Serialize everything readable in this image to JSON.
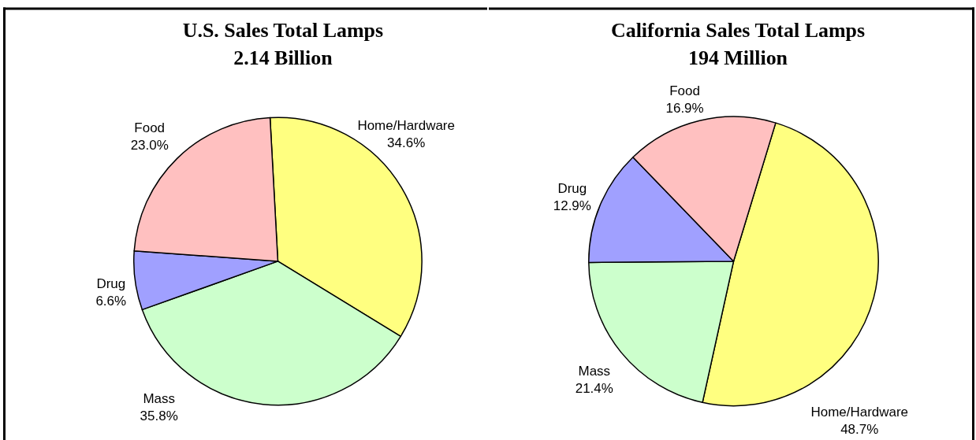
{
  "chart_data": [
    {
      "type": "pie",
      "title": "U.S. Sales Total Lamps",
      "subtitle": "2.14 Billion",
      "categories": [
        "Home/Hardware",
        "Mass",
        "Drug",
        "Food"
      ],
      "values": [
        34.6,
        35.8,
        6.6,
        23.0
      ],
      "colors": [
        "#ffff80",
        "#ccffcc",
        "#a0a0ff",
        "#ffc0c0"
      ],
      "value_labels": [
        "34.6%",
        "35.8%",
        "6.6%",
        "23.0%"
      ]
    },
    {
      "type": "pie",
      "title": "California Sales Total Lamps",
      "subtitle": "194 Million",
      "categories": [
        "Home/Hardware",
        "Mass",
        "Drug",
        "Food"
      ],
      "values": [
        48.7,
        21.4,
        12.9,
        16.9
      ],
      "colors": [
        "#ffff80",
        "#ccffcc",
        "#a0a0ff",
        "#ffc0c0"
      ],
      "value_labels": [
        "48.7%",
        "21.4%",
        "12.9%",
        "16.9%"
      ]
    }
  ]
}
